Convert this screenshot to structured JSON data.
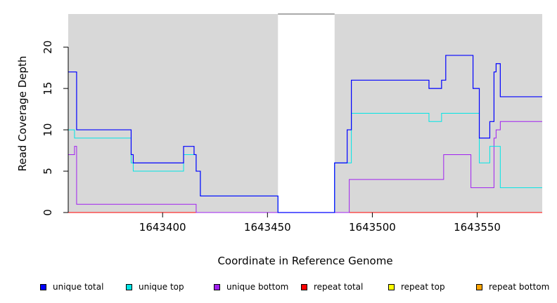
{
  "chart_data": {
    "type": "line",
    "step": true,
    "xlabel": "Coordinate in Reference Genome",
    "ylabel": "Read Coverage Depth",
    "xlim": [
      1643355,
      1643581
    ],
    "ylim": [
      0,
      24
    ],
    "x_ticks": [
      1643400,
      1643450,
      1643500,
      1643550
    ],
    "x_tick_labels": [
      "1643400",
      "1643450",
      "1643500",
      "1643550"
    ],
    "y_ticks": [
      0,
      5,
      10,
      15,
      20
    ],
    "y_tick_labels": [
      "0",
      "5",
      "10",
      "15",
      "20"
    ],
    "background_color": "#d8d8d8",
    "gap_regions": [
      [
        1643455,
        1643482
      ]
    ],
    "legend_position": "bottom",
    "series": [
      {
        "name": "unique total",
        "color": "#0000ff",
        "x": [
          1643355,
          1643359,
          1643385,
          1643386,
          1643410,
          1643415,
          1643416,
          1643418,
          1643455,
          1643482,
          1643488,
          1643490,
          1643527,
          1643533,
          1643535,
          1643548,
          1643551,
          1643556,
          1643558,
          1643559,
          1643561,
          1643581
        ],
        "y": [
          17,
          10,
          7,
          6,
          8,
          7,
          5,
          2,
          0,
          6,
          10,
          16,
          15,
          16,
          19,
          15,
          9,
          11,
          17,
          18,
          14,
          14
        ]
      },
      {
        "name": "unique top",
        "color": "#00e5e5",
        "x": [
          1643355,
          1643358,
          1643385,
          1643386,
          1643410,
          1643415,
          1643416,
          1643418,
          1643455,
          1643482,
          1643488,
          1643490,
          1643527,
          1643533,
          1643551,
          1643556,
          1643561,
          1643581
        ],
        "y": [
          10,
          9,
          6,
          5,
          7,
          7,
          5,
          2,
          0,
          6,
          6,
          12,
          11,
          12,
          6,
          8,
          3,
          3
        ]
      },
      {
        "name": "unique bottom",
        "color": "#a020f0",
        "x": [
          1643355,
          1643358,
          1643359,
          1643416,
          1643488,
          1643489,
          1643534,
          1643547,
          1643557,
          1643558,
          1643559,
          1643561,
          1643581
        ],
        "y": [
          7,
          8,
          1,
          0,
          0,
          4,
          7,
          3,
          3,
          9,
          10,
          11,
          11
        ]
      },
      {
        "name": "repeat total",
        "color": "#ff0000",
        "x": [
          1643355,
          1643581
        ],
        "y": [
          0,
          0
        ]
      },
      {
        "name": "repeat top",
        "color": "#ffff00",
        "x": [
          1643355,
          1643581
        ],
        "y": [
          0,
          0
        ]
      },
      {
        "name": "repeat bottom",
        "color": "#ffa500",
        "x": [
          1643355,
          1643581
        ],
        "y": [
          0,
          0
        ]
      }
    ]
  }
}
